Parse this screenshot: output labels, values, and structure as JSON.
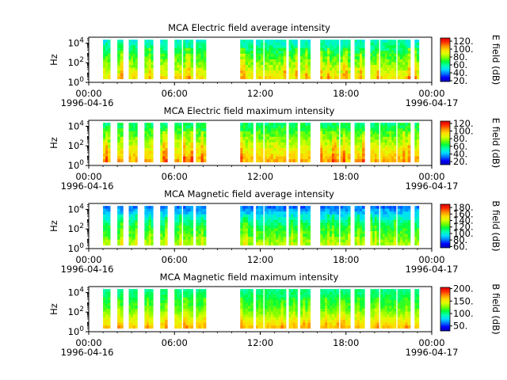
{
  "colors": {
    "colormap": [
      "#0000b4",
      "#0000ff",
      "#0078ff",
      "#00dcff",
      "#00ffb4",
      "#00ff3c",
      "#78ff00",
      "#dcff00",
      "#ffdc00",
      "#ff8c00",
      "#ff2800",
      "#dc0000"
    ]
  },
  "x_ticks": {
    "times": [
      "00:00",
      "06:00",
      "12:00",
      "18:00",
      "00:00"
    ],
    "start_date": "1996-04-16",
    "end_date": "1996-04-17"
  },
  "chart_data": [
    {
      "type": "heatmap",
      "title": "MCA  Electric field average intensity",
      "ylabel": "Hz",
      "yscale": "log",
      "ylim_exponent": [
        0,
        4.6
      ],
      "yticks": [
        {
          "base": "10",
          "exp": "0"
        },
        {
          "base": "10",
          "exp": "2"
        },
        {
          "base": "10",
          "exp": "4"
        }
      ],
      "xlim_hours": [
        0,
        24
      ],
      "colorbar": {
        "label": "E field (dB)",
        "range": [
          18,
          128
        ],
        "ticks": [
          "20.",
          "40.",
          "60.",
          "80.",
          "100.",
          "120."
        ]
      },
      "data_intervals_hours": [
        [
          1.0,
          1.5
        ],
        [
          2.0,
          2.4
        ],
        [
          2.8,
          3.4
        ],
        [
          3.9,
          4.5
        ],
        [
          5.0,
          5.5
        ],
        [
          6.0,
          6.5
        ],
        [
          6.6,
          7.3
        ],
        [
          7.5,
          8.2
        ],
        [
          10.6,
          11.5
        ],
        [
          11.7,
          12.2
        ],
        [
          12.3,
          12.9
        ],
        [
          12.9,
          13.8
        ],
        [
          14.0,
          14.6
        ],
        [
          14.8,
          15.5
        ],
        [
          16.2,
          17.5
        ],
        [
          17.6,
          18.3
        ],
        [
          18.6,
          19.3
        ],
        [
          19.7,
          20.3
        ],
        [
          20.4,
          21.5
        ],
        [
          21.6,
          22.5
        ],
        [
          22.8,
          23.1
        ]
      ],
      "typical_db": {
        "low_freq": 95,
        "mid_freq": 75,
        "high_freq": 55
      }
    },
    {
      "type": "heatmap",
      "title": "MCA  Electric field maximum intensity",
      "ylabel": "Hz",
      "yscale": "log",
      "ylim_exponent": [
        0,
        4.6
      ],
      "yticks": [
        {
          "base": "10",
          "exp": "0"
        },
        {
          "base": "10",
          "exp": "2"
        },
        {
          "base": "10",
          "exp": "4"
        }
      ],
      "xlim_hours": [
        0,
        24
      ],
      "colorbar": {
        "label": "E field (dB)",
        "range": [
          12,
          126
        ],
        "ticks": [
          "20.",
          "40.",
          "60.",
          "80.",
          "100.",
          "120."
        ]
      },
      "data_intervals_hours": [
        [
          1.0,
          1.5
        ],
        [
          2.0,
          2.4
        ],
        [
          2.8,
          3.4
        ],
        [
          3.9,
          4.5
        ],
        [
          5.0,
          5.5
        ],
        [
          6.0,
          6.5
        ],
        [
          6.6,
          7.3
        ],
        [
          7.5,
          8.2
        ],
        [
          10.6,
          11.5
        ],
        [
          11.7,
          12.2
        ],
        [
          12.3,
          12.9
        ],
        [
          12.9,
          13.8
        ],
        [
          14.0,
          14.6
        ],
        [
          14.8,
          15.5
        ],
        [
          16.2,
          17.5
        ],
        [
          17.6,
          18.3
        ],
        [
          18.6,
          19.3
        ],
        [
          19.7,
          20.3
        ],
        [
          20.4,
          21.5
        ],
        [
          21.6,
          22.5
        ],
        [
          22.8,
          23.1
        ]
      ],
      "typical_db": {
        "low_freq": 100,
        "mid_freq": 80,
        "high_freq": 60
      }
    },
    {
      "type": "heatmap",
      "title": "MCA  Magnetic field average intensity",
      "ylabel": "Hz",
      "yscale": "log",
      "ylim_exponent": [
        0,
        4.6
      ],
      "yticks": [
        {
          "base": "10",
          "exp": "0"
        },
        {
          "base": "10",
          "exp": "2"
        },
        {
          "base": "10",
          "exp": "4"
        }
      ],
      "xlim_hours": [
        0,
        24
      ],
      "colorbar": {
        "label": "B field (dB)",
        "range": [
          56,
          190
        ],
        "ticks": [
          "60.",
          "80.",
          "100.",
          "120.",
          "140.",
          "160.",
          "180."
        ]
      },
      "data_intervals_hours": [
        [
          1.0,
          1.5
        ],
        [
          2.0,
          2.4
        ],
        [
          2.8,
          3.4
        ],
        [
          3.9,
          4.5
        ],
        [
          5.0,
          5.5
        ],
        [
          6.0,
          6.5
        ],
        [
          6.6,
          7.3
        ],
        [
          7.5,
          8.2
        ],
        [
          10.6,
          11.5
        ],
        [
          11.7,
          12.2
        ],
        [
          12.3,
          12.9
        ],
        [
          12.9,
          13.8
        ],
        [
          14.0,
          14.6
        ],
        [
          14.8,
          15.5
        ],
        [
          16.2,
          17.5
        ],
        [
          17.6,
          18.3
        ],
        [
          18.6,
          19.3
        ],
        [
          19.7,
          20.3
        ],
        [
          20.4,
          21.5
        ],
        [
          21.6,
          22.5
        ],
        [
          22.8,
          23.1
        ]
      ],
      "typical_db": {
        "low_freq": 135,
        "mid_freq": 115,
        "high_freq": 80
      }
    },
    {
      "type": "heatmap",
      "title": "MCA  Magnetic field maximum intensity",
      "ylabel": "Hz",
      "yscale": "log",
      "ylim_exponent": [
        0,
        4.6
      ],
      "yticks": [
        {
          "base": "10",
          "exp": "0"
        },
        {
          "base": "10",
          "exp": "2"
        },
        {
          "base": "10",
          "exp": "4"
        }
      ],
      "xlim_hours": [
        0,
        24
      ],
      "colorbar": {
        "label": "B field (dB)",
        "range": [
          30,
          205
        ],
        "ticks": [
          "50.",
          "100.",
          "150.",
          "200."
        ]
      },
      "data_intervals_hours": [
        [
          1.0,
          1.5
        ],
        [
          2.0,
          2.4
        ],
        [
          2.8,
          3.4
        ],
        [
          3.9,
          4.5
        ],
        [
          5.0,
          5.5
        ],
        [
          6.0,
          6.5
        ],
        [
          6.6,
          7.3
        ],
        [
          7.5,
          8.2
        ],
        [
          10.6,
          11.5
        ],
        [
          11.7,
          12.2
        ],
        [
          12.3,
          12.9
        ],
        [
          12.9,
          13.8
        ],
        [
          14.0,
          14.6
        ],
        [
          14.8,
          15.5
        ],
        [
          16.2,
          17.5
        ],
        [
          17.6,
          18.3
        ],
        [
          18.6,
          19.3
        ],
        [
          19.7,
          20.3
        ],
        [
          20.4,
          21.5
        ],
        [
          21.6,
          22.5
        ],
        [
          22.8,
          23.1
        ]
      ],
      "typical_db": {
        "low_freq": 160,
        "mid_freq": 120,
        "high_freq": 100
      }
    }
  ]
}
